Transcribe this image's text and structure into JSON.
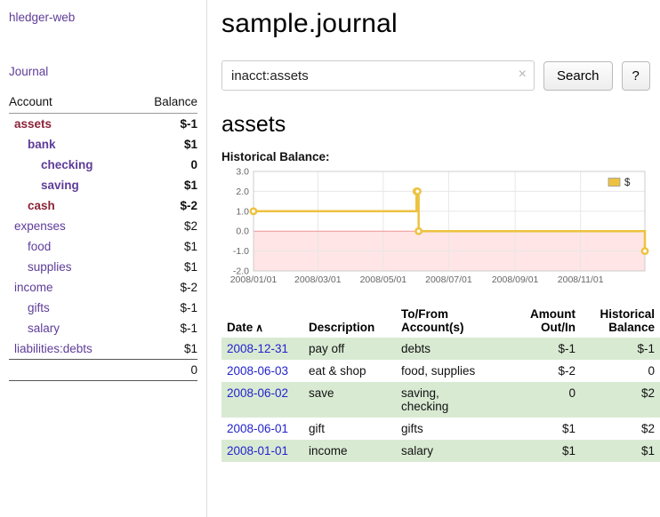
{
  "colors": {
    "link_purple": "#5e3c99",
    "neg_strong": "#8c2438",
    "neg_light": "#c4677f",
    "neg_register": "#a8304c",
    "row_green": "#d9ead3",
    "date_blue": "#2323cc",
    "chart_line": "#edc240"
  },
  "sidebar": {
    "app_title": "hledger-web",
    "journal_link": "Journal",
    "accounts": {
      "col_account": "Account",
      "col_balance": "Balance",
      "rows": [
        {
          "name": "assets",
          "balance": "$-1",
          "indent": 0,
          "bold": true,
          "name_style": "neg-strong",
          "bal_style": "neg-strong"
        },
        {
          "name": "bank",
          "balance": "$1",
          "indent": 1,
          "bold": true,
          "name_style": "purple",
          "bal_style": "plain"
        },
        {
          "name": "checking",
          "balance": "0",
          "indent": 2,
          "bold": true,
          "name_style": "purple",
          "bal_style": "plain"
        },
        {
          "name": "saving",
          "balance": "$1",
          "indent": 2,
          "bold": true,
          "name_style": "purple",
          "bal_style": "plain"
        },
        {
          "name": "cash",
          "balance": "$-2",
          "indent": 1,
          "bold": true,
          "name_style": "neg-strong",
          "bal_style": "neg-strong"
        },
        {
          "name": "expenses",
          "balance": "$2",
          "indent": 0,
          "bold": false,
          "name_style": "purple",
          "bal_style": "plain"
        },
        {
          "name": "food",
          "balance": "$1",
          "indent": 1,
          "bold": false,
          "name_style": "purple",
          "bal_style": "plain"
        },
        {
          "name": "supplies",
          "balance": "$1",
          "indent": 1,
          "bold": false,
          "name_style": "purple",
          "bal_style": "plain"
        },
        {
          "name": "income",
          "balance": "$-2",
          "indent": 0,
          "bold": false,
          "name_style": "purple",
          "bal_style": "neg-light"
        },
        {
          "name": "gifts",
          "balance": "$-1",
          "indent": 1,
          "bold": false,
          "name_style": "purple",
          "bal_style": "neg-light"
        },
        {
          "name": "salary",
          "balance": "$-1",
          "indent": 1,
          "bold": false,
          "name_style": "purple",
          "bal_style": "neg-light"
        },
        {
          "name": "liabilities:debts",
          "balance": "$1",
          "indent": 0,
          "bold": false,
          "name_style": "purple",
          "bal_style": "plain"
        }
      ],
      "total": "0"
    }
  },
  "main": {
    "title": "sample.journal",
    "search": {
      "value": "inacct:assets",
      "clear_icon": "×",
      "search_button": "Search",
      "help_button": "?"
    },
    "account_heading": "assets",
    "chart_title": "Historical Balance:",
    "register": {
      "headers": {
        "date": "Date",
        "sort_icon": "∧",
        "description": "Description",
        "account": "To/From\nAccount(s)",
        "amount": "Amount\nOut/In",
        "balance": "Historical\nBalance"
      },
      "rows": [
        {
          "date": "2008-12-31",
          "description": "pay off",
          "account": "debts",
          "amount": "$-1",
          "amount_neg": true,
          "balance": "$-1",
          "balance_neg": true,
          "shaded": true
        },
        {
          "date": "2008-06-03",
          "description": "eat & shop",
          "account": "food, supplies",
          "amount": "$-2",
          "amount_neg": true,
          "balance": "0",
          "balance_neg": false,
          "shaded": false
        },
        {
          "date": "2008-06-02",
          "description": "save",
          "account": "saving,\nchecking",
          "amount": "0",
          "amount_neg": false,
          "balance": "$2",
          "balance_neg": false,
          "shaded": true
        },
        {
          "date": "2008-06-01",
          "description": "gift",
          "account": "gifts",
          "amount": "$1",
          "amount_neg": false,
          "balance": "$2",
          "balance_neg": false,
          "shaded": false
        },
        {
          "date": "2008-01-01",
          "description": "income",
          "account": "salary",
          "amount": "$1",
          "amount_neg": false,
          "balance": "$1",
          "balance_neg": false,
          "shaded": true
        }
      ]
    }
  },
  "chart_data": {
    "type": "line",
    "step": true,
    "title": "Historical Balance",
    "series": [
      {
        "name": "$",
        "color": "#edc240",
        "points": [
          [
            "2008-01-01",
            1
          ],
          [
            "2008-06-01",
            2
          ],
          [
            "2008-06-02",
            2
          ],
          [
            "2008-06-03",
            0
          ],
          [
            "2008-12-31",
            -1
          ]
        ]
      }
    ],
    "x_range": [
      "2008-01-01",
      "2008-12-31"
    ],
    "xticks": [
      "2008/01/01",
      "2008/03/01",
      "2008/05/01",
      "2008/07/01",
      "2008/09/01",
      "2008/11/01"
    ],
    "xtick_dates": [
      "2008-01-01",
      "2008-03-01",
      "2008-05-01",
      "2008-07-01",
      "2008-09-01",
      "2008-11-01"
    ],
    "yticks": [
      3.0,
      2.0,
      1.0,
      0.0,
      -1.0,
      -2.0
    ],
    "ylim": [
      -2,
      3
    ],
    "grid": true,
    "negative_region_fill": "rgba(255,0,0,0.10)",
    "legend": {
      "label": "$",
      "position": "top-right"
    }
  }
}
